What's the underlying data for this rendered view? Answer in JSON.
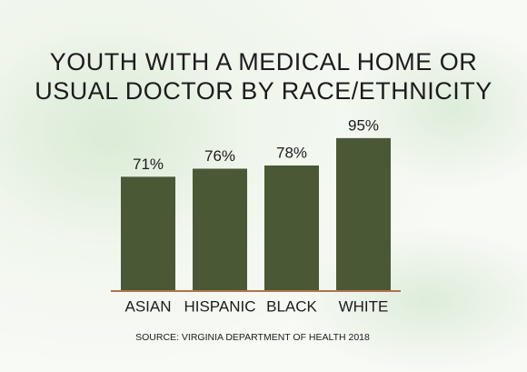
{
  "chart_data": {
    "type": "bar",
    "title": [
      "YOUTH WITH A MEDICAL HOME OR",
      "USUAL DOCTOR BY RACE/ETHNICITY"
    ],
    "categories": [
      "ASIAN",
      "HISPANIC",
      "BLACK",
      "WHITE"
    ],
    "values": [
      71,
      76,
      78,
      95
    ],
    "value_labels": [
      "71%",
      "76%",
      "78%",
      "95%"
    ],
    "color": "#4a5836",
    "source": "SOURCE: VIRGINIA DEPARTMENT OF HEALTH 2018"
  }
}
